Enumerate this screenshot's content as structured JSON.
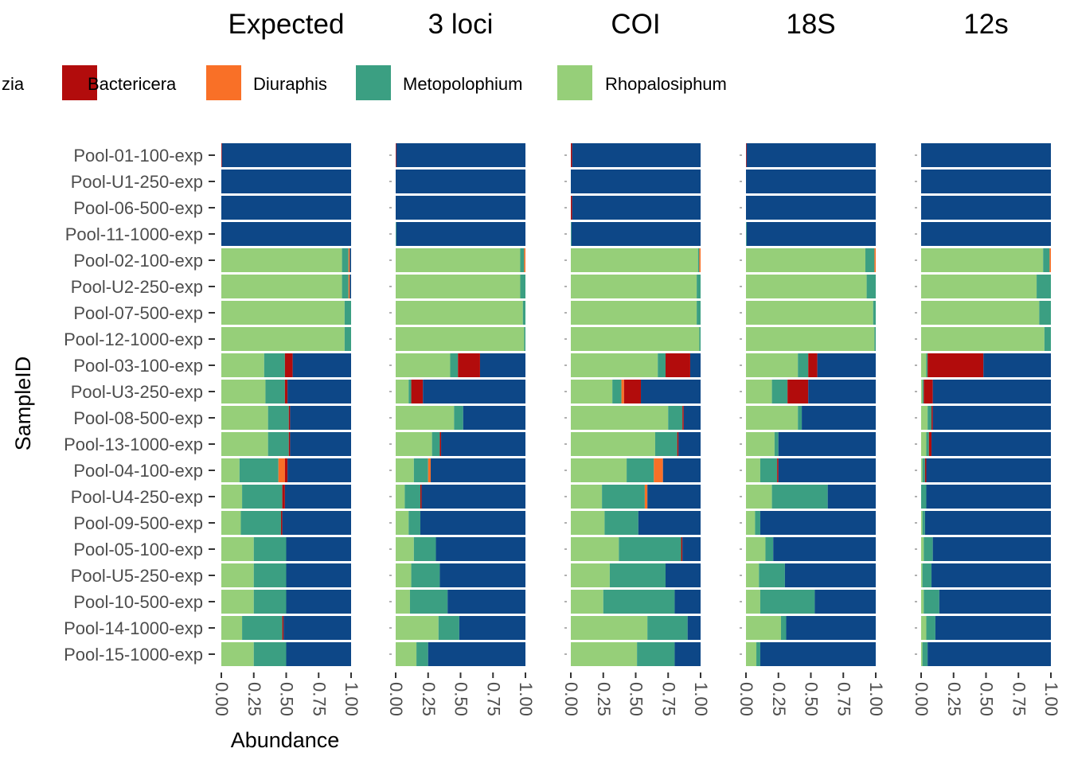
{
  "chart_data": {
    "type": "bar",
    "orientation": "horizontal-stacked",
    "ylabel": "SampleID",
    "xlabel": "Abundance",
    "xlim": [
      0,
      1
    ],
    "x_ticks": [
      "0.00",
      "0.25",
      "0.50",
      "0.75",
      "1.00"
    ],
    "legend": {
      "position": "top",
      "entries": [
        {
          "name": "zia",
          "color": "#0d4787"
        },
        {
          "name": "Bactericera",
          "color": "#b20c0c"
        },
        {
          "name": "Diuraphis",
          "color": "#f97027"
        },
        {
          "name": "Metopolophium",
          "color": "#3b9f82"
        },
        {
          "name": "Rhopalosiphum",
          "color": "#96cf79"
        }
      ]
    },
    "stack_order": [
      "Rhopalosiphum",
      "Metopolophium",
      "Diuraphis",
      "Bactericera",
      "zia"
    ],
    "samples": [
      "Pool-01-100-exp",
      "Pool-U1-250-exp",
      "Pool-06-500-exp",
      "Pool-11-1000-exp",
      "Pool-02-100-exp",
      "Pool-U2-250-exp",
      "Pool-07-500-exp",
      "Pool-12-1000-exp",
      "Pool-03-100-exp",
      "Pool-U3-250-exp",
      "Pool-08-500-exp",
      "Pool-13-1000-exp",
      "Pool-04-100-exp",
      "Pool-U4-250-exp",
      "Pool-09-500-exp",
      "Pool-05-100-exp",
      "Pool-U5-250-exp",
      "Pool-10-500-exp",
      "Pool-14-1000-exp",
      "Pool-15-1000-exp"
    ],
    "facets": [
      {
        "title": "Expected",
        "rows": [
          [
            0,
            0,
            0,
            0.005,
            0.995
          ],
          [
            0,
            0,
            0,
            0,
            1
          ],
          [
            0,
            0,
            0,
            0,
            1
          ],
          [
            0,
            0,
            0,
            0,
            1
          ],
          [
            0.93,
            0.05,
            0.01,
            0,
            0.01
          ],
          [
            0.93,
            0.05,
            0.01,
            0,
            0.01
          ],
          [
            0.95,
            0.05,
            0,
            0,
            0
          ],
          [
            0.95,
            0.05,
            0,
            0,
            0
          ],
          [
            0.33,
            0.16,
            0,
            0.06,
            0.45
          ],
          [
            0.34,
            0.15,
            0,
            0.02,
            0.49
          ],
          [
            0.36,
            0.16,
            0,
            0.01,
            0.47
          ],
          [
            0.36,
            0.16,
            0,
            0.01,
            0.47
          ],
          [
            0.14,
            0.3,
            0.05,
            0.02,
            0.49
          ],
          [
            0.16,
            0.31,
            0,
            0.02,
            0.51
          ],
          [
            0.15,
            0.31,
            0,
            0.01,
            0.53
          ],
          [
            0.25,
            0.25,
            0,
            0,
            0.5
          ],
          [
            0.25,
            0.25,
            0,
            0,
            0.5
          ],
          [
            0.25,
            0.25,
            0,
            0,
            0.5
          ],
          [
            0.16,
            0.31,
            0,
            0.01,
            0.52
          ],
          [
            0.25,
            0.25,
            0,
            0,
            0.5
          ]
        ]
      },
      {
        "title": "3 loci",
        "rows": [
          [
            0,
            0,
            0,
            0.005,
            0.995
          ],
          [
            0,
            0,
            0,
            0,
            1
          ],
          [
            0,
            0,
            0,
            0,
            1
          ],
          [
            0,
            0.005,
            0,
            0,
            0.995
          ],
          [
            0.96,
            0.03,
            0.01,
            0,
            0
          ],
          [
            0.96,
            0.04,
            0,
            0,
            0
          ],
          [
            0.98,
            0.02,
            0,
            0,
            0
          ],
          [
            0.99,
            0.01,
            0,
            0,
            0
          ],
          [
            0.42,
            0.06,
            0,
            0.17,
            0.35
          ],
          [
            0.1,
            0.02,
            0,
            0.09,
            0.79
          ],
          [
            0.45,
            0.07,
            0,
            0,
            0.48
          ],
          [
            0.28,
            0.06,
            0,
            0.01,
            0.65
          ],
          [
            0.14,
            0.11,
            0.02,
            0,
            0.73
          ],
          [
            0.07,
            0.12,
            0,
            0.01,
            0.8
          ],
          [
            0.1,
            0.09,
            0,
            0,
            0.81
          ],
          [
            0.14,
            0.17,
            0,
            0,
            0.69
          ],
          [
            0.12,
            0.22,
            0,
            0,
            0.66
          ],
          [
            0.11,
            0.29,
            0,
            0,
            0.6
          ],
          [
            0.33,
            0.16,
            0,
            0,
            0.51
          ],
          [
            0.16,
            0.09,
            0,
            0,
            0.75
          ]
        ]
      },
      {
        "title": "COI",
        "rows": [
          [
            0,
            0,
            0,
            0.01,
            0.99
          ],
          [
            0,
            0,
            0,
            0,
            1
          ],
          [
            0,
            0,
            0,
            0.01,
            0.99
          ],
          [
            0,
            0.005,
            0,
            0,
            0.995
          ],
          [
            0.98,
            0.01,
            0.01,
            0,
            0
          ],
          [
            0.97,
            0.03,
            0,
            0,
            0
          ],
          [
            0.97,
            0.03,
            0,
            0,
            0
          ],
          [
            0.99,
            0.01,
            0,
            0,
            0
          ],
          [
            0.67,
            0.06,
            0,
            0.19,
            0.08
          ],
          [
            0.32,
            0.07,
            0.02,
            0.13,
            0.46
          ],
          [
            0.75,
            0.11,
            0,
            0.01,
            0.13
          ],
          [
            0.65,
            0.17,
            0,
            0.01,
            0.17
          ],
          [
            0.43,
            0.21,
            0.07,
            0,
            0.29
          ],
          [
            0.24,
            0.33,
            0.02,
            0,
            0.41
          ],
          [
            0.26,
            0.26,
            0,
            0,
            0.48
          ],
          [
            0.37,
            0.48,
            0,
            0.01,
            0.14
          ],
          [
            0.3,
            0.43,
            0,
            0,
            0.27
          ],
          [
            0.25,
            0.55,
            0,
            0,
            0.2
          ],
          [
            0.59,
            0.31,
            0,
            0,
            0.1
          ],
          [
            0.51,
            0.29,
            0,
            0,
            0.2
          ]
        ]
      },
      {
        "title": "18S",
        "rows": [
          [
            0,
            0,
            0,
            0.005,
            0.995
          ],
          [
            0,
            0,
            0,
            0,
            1
          ],
          [
            0,
            0,
            0,
            0,
            1
          ],
          [
            0,
            0.005,
            0,
            0,
            0.995
          ],
          [
            0.92,
            0.07,
            0.01,
            0,
            0
          ],
          [
            0.93,
            0.07,
            0,
            0,
            0
          ],
          [
            0.98,
            0.02,
            0,
            0,
            0
          ],
          [
            0.99,
            0.01,
            0,
            0,
            0
          ],
          [
            0.4,
            0.08,
            0,
            0.07,
            0.45
          ],
          [
            0.2,
            0.12,
            0,
            0.16,
            0.52
          ],
          [
            0.4,
            0.03,
            0,
            0,
            0.57
          ],
          [
            0.22,
            0.03,
            0,
            0,
            0.75
          ],
          [
            0.11,
            0.13,
            0,
            0.01,
            0.75
          ],
          [
            0.2,
            0.43,
            0,
            0,
            0.37
          ],
          [
            0.07,
            0.04,
            0,
            0,
            0.89
          ],
          [
            0.15,
            0.06,
            0,
            0,
            0.79
          ],
          [
            0.1,
            0.2,
            0,
            0,
            0.7
          ],
          [
            0.11,
            0.42,
            0,
            0,
            0.47
          ],
          [
            0.27,
            0.04,
            0,
            0,
            0.69
          ],
          [
            0.08,
            0.03,
            0,
            0,
            0.89
          ]
        ]
      },
      {
        "title": "12s",
        "rows": [
          [
            0,
            0,
            0,
            0,
            1
          ],
          [
            0,
            0,
            0,
            0,
            1
          ],
          [
            0,
            0,
            0,
            0,
            1
          ],
          [
            0,
            0,
            0,
            0,
            1
          ],
          [
            0.94,
            0.05,
            0.01,
            0,
            0
          ],
          [
            0.89,
            0.11,
            0,
            0,
            0
          ],
          [
            0.91,
            0.09,
            0,
            0,
            0
          ],
          [
            0.95,
            0.05,
            0,
            0,
            0
          ],
          [
            0.04,
            0.01,
            0,
            0.43,
            0.52
          ],
          [
            0.01,
            0.01,
            0,
            0.07,
            0.91
          ],
          [
            0.05,
            0.03,
            0,
            0.01,
            0.91
          ],
          [
            0.04,
            0.02,
            0,
            0.02,
            0.92
          ],
          [
            0.01,
            0.02,
            0,
            0.01,
            0.96
          ],
          [
            0,
            0.04,
            0,
            0,
            0.96
          ],
          [
            0.01,
            0.02,
            0,
            0,
            0.97
          ],
          [
            0.02,
            0.07,
            0,
            0,
            0.91
          ],
          [
            0.01,
            0.07,
            0,
            0,
            0.92
          ],
          [
            0.02,
            0.12,
            0,
            0,
            0.86
          ],
          [
            0.04,
            0.07,
            0,
            0,
            0.89
          ],
          [
            0.01,
            0.04,
            0,
            0,
            0.95
          ]
        ]
      }
    ]
  }
}
